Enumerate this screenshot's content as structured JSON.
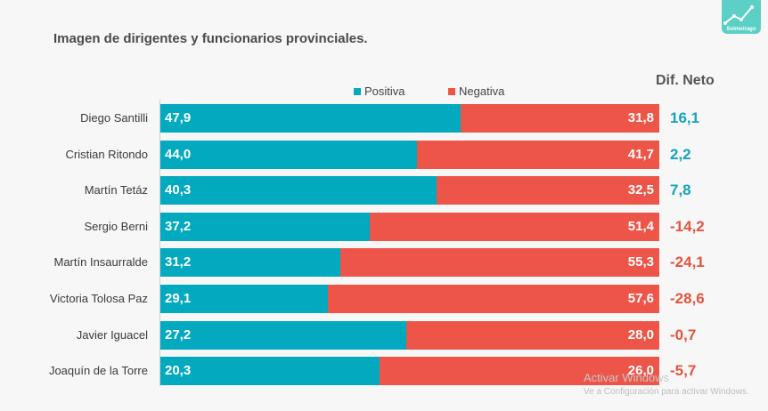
{
  "title": "Imagen de dirigentes y funcionarios provinciales.",
  "logo_text": "Solmoirago",
  "net_header": "Dif. Neto",
  "legend": {
    "positive": "Positiva",
    "negative": "Negativa"
  },
  "colors": {
    "positive": "#03a9be",
    "negative": "#ec5547",
    "net_positive": "#14a4b8",
    "net_negative": "#e0553f"
  },
  "watermark": {
    "line1": "Activar Windows",
    "line2": "Ve a Configuración para activar Windows."
  },
  "chart_data": {
    "type": "bar",
    "orientation": "horizontal",
    "stacked": true,
    "title": "Imagen de dirigentes y funcionarios provinciales.",
    "categories": [
      "Diego Santilli",
      "Cristian Ritondo",
      "Martín Tetáz",
      "Sergio Berni",
      "Martín Insaurralde",
      "Victoria Tolosa Paz",
      "Javier Iguacel",
      "Joaquín de la Torre"
    ],
    "series": [
      {
        "name": "Positiva",
        "values": [
          47.9,
          44.0,
          40.3,
          37.2,
          31.2,
          29.1,
          27.2,
          20.3
        ],
        "labels": [
          "47,9",
          "44,0",
          "40,3",
          "37,2",
          "31,2",
          "29,1",
          "27,2",
          "20,3"
        ]
      },
      {
        "name": "Negativa",
        "values": [
          31.8,
          41.7,
          32.5,
          51.4,
          55.3,
          57.6,
          28.0,
          26.0
        ],
        "labels": [
          "31,8",
          "41,7",
          "32,5",
          "51,4",
          "55,3",
          "57,6",
          "28,0",
          "26,0"
        ]
      }
    ],
    "net": {
      "name": "Dif. Neto",
      "values": [
        16.1,
        2.2,
        7.8,
        -14.2,
        -24.1,
        -28.6,
        -0.7,
        -5.7
      ],
      "labels": [
        "16,1",
        "2,2",
        "7,8",
        "-14,2",
        "-24,1",
        "-28,6",
        "-0,7",
        "-5,7"
      ]
    },
    "legend": "top"
  }
}
